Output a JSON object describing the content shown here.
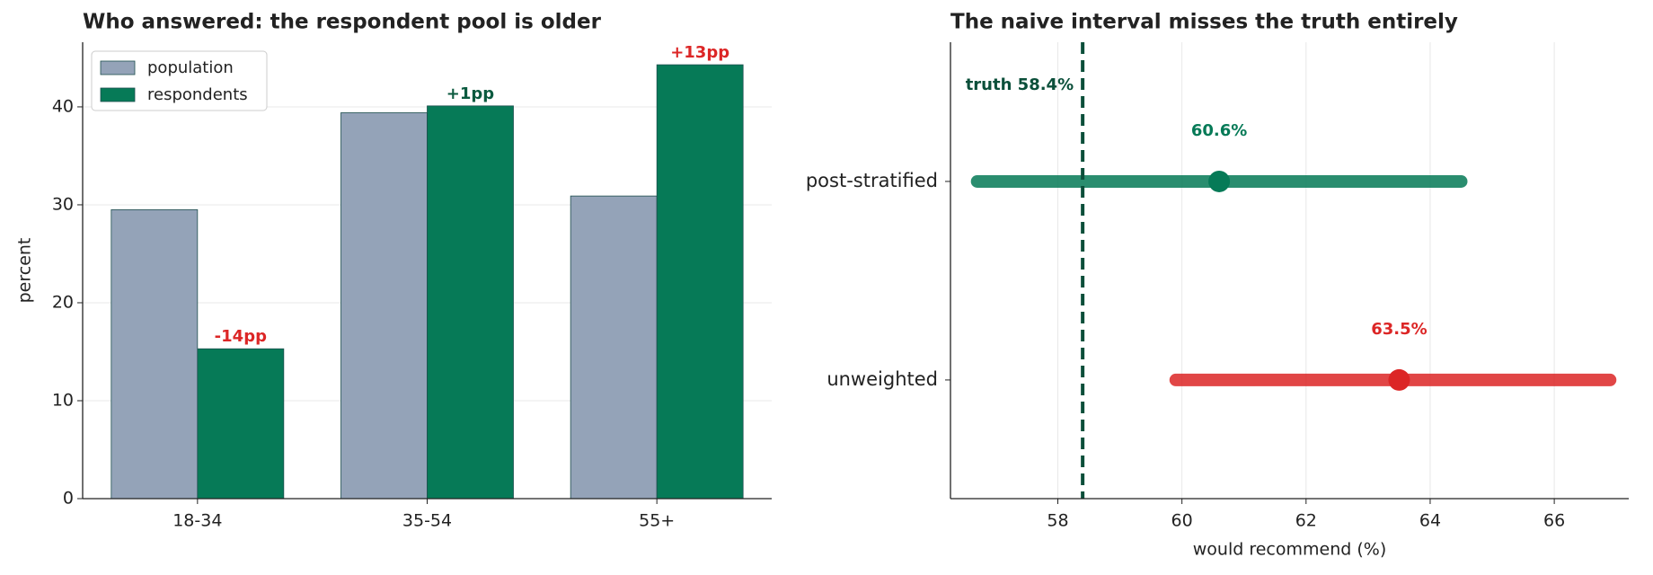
{
  "chart_data": [
    {
      "type": "bar",
      "title": "Who answered: the respondent pool is older",
      "categories": [
        "18-34",
        "35-54",
        "55+"
      ],
      "series": [
        {
          "name": "population",
          "color": "#94a3b8",
          "values": [
            29.5,
            39.4,
            30.9
          ]
        },
        {
          "name": "respondents",
          "color": "#067a57",
          "values": [
            15.3,
            40.1,
            44.3
          ]
        }
      ],
      "annotations": [
        "-14pp",
        "+1pp",
        "+13pp"
      ],
      "annotation_colors": [
        "#dc2626",
        "#0b5a3f",
        "#dc2626"
      ],
      "ylabel": "percent",
      "ylim": [
        0,
        46.6
      ],
      "yticks": [
        0,
        10,
        20,
        30,
        40
      ],
      "grid": true,
      "legend": "upper left"
    },
    {
      "type": "interval",
      "title": "The naive interval misses the truth entirely",
      "categories": [
        "post-stratified",
        "unweighted"
      ],
      "values": [
        60.6,
        63.5
      ],
      "value_labels": [
        "60.6%",
        "63.5%"
      ],
      "low": [
        56.7,
        59.9
      ],
      "high": [
        64.5,
        66.9
      ],
      "colors": [
        "#067a57",
        "#dc2626"
      ],
      "reference": {
        "value": 58.4,
        "label": "truth 58.4%",
        "color": "#0b4f3a"
      },
      "xlabel": "would recommend (%)",
      "xlim": [
        56.27,
        67.2
      ],
      "xticks": [
        58,
        60,
        62,
        64,
        66
      ],
      "grid": true
    }
  ]
}
